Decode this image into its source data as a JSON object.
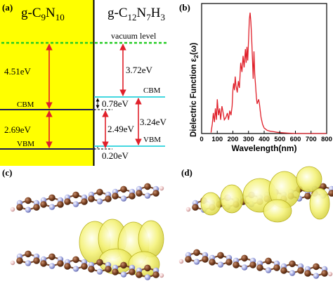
{
  "panel_a": {
    "label": "(a)",
    "left_material": {
      "main": "g-C",
      "sub1": "9",
      "mid": "N",
      "sub2": "10"
    },
    "right_material": {
      "main": "g-C",
      "sub1": "12",
      "mid": "N",
      "sub2": "7",
      "mid2": "H",
      "sub3": "3"
    },
    "vacuum_level": "vacuum level",
    "left_cbm_label": "CBM",
    "left_vbm_label": "VBM",
    "right_cbm_label": "CBM",
    "right_vbm_label": "VBM",
    "gap_left_vac_cbm": "4.51eV",
    "gap_left_band": "2.69eV",
    "gap_right_vac_cbm": "3.72eV",
    "offset_cbm": "0.78eV",
    "gap_right_band": "2.49eV",
    "gap_right_span": "3.24eV",
    "offset_vbm": "0.20eV"
  },
  "panel_b": {
    "label": "(b)",
    "ylabel_pre": "Dielectric Function ε",
    "ylabel_sub": "2",
    "ylabel_post": "(ω)",
    "xlabel": "Wavelength(nm)",
    "x_ticks": [
      "0",
      "100",
      "200",
      "300",
      "400",
      "500",
      "600",
      "700",
      "800"
    ]
  },
  "panel_c": {
    "label": "(c)"
  },
  "panel_d": {
    "label": "(d)"
  },
  "colors": {
    "yellow": "#ffff00",
    "red": "#e0202a",
    "green": "#22cc22",
    "cyan": "#44d8e0",
    "navy": "#1a1a55"
  },
  "chart_data": {
    "type": "line",
    "xlabel": "Wavelength(nm)",
    "ylabel": "Dielectric Function ε2(ω)",
    "xlim": [
      0,
      800
    ],
    "grid": false,
    "series": [
      {
        "x": [
          60,
          68,
          75,
          82,
          88,
          95,
          100,
          108,
          115,
          122,
          130,
          138,
          145,
          155,
          165,
          172,
          180,
          188,
          195,
          200,
          205,
          210,
          215,
          220,
          228,
          235,
          242,
          250,
          258,
          265,
          272,
          280,
          285,
          290,
          295,
          300,
          305,
          310,
          315,
          320,
          325,
          330,
          335,
          340,
          345,
          350,
          355,
          360,
          365,
          370,
          375,
          380,
          390,
          400,
          420,
          440,
          460,
          480,
          500,
          550,
          600,
          700,
          800
        ],
        "y": [
          0.02,
          0.2,
          0.45,
          0.25,
          0.55,
          0.3,
          0.75,
          0.4,
          0.55,
          0.3,
          0.6,
          0.45,
          0.3,
          0.35,
          0.45,
          0.3,
          0.5,
          0.4,
          0.6,
          0.95,
          1.1,
          0.95,
          1.25,
          1.05,
          0.9,
          1.15,
          1.0,
          1.55,
          1.35,
          1.7,
          1.45,
          1.85,
          1.55,
          1.9,
          1.6,
          2.05,
          2.5,
          2.65,
          2.45,
          2.1,
          1.65,
          1.2,
          1.8,
          1.3,
          1.05,
          0.8,
          0.65,
          0.7,
          0.75,
          0.65,
          0.5,
          0.35,
          0.2,
          0.12,
          0.07,
          0.05,
          0.04,
          0.03,
          0.02,
          0.01,
          0.0,
          0.0,
          0.0
        ]
      }
    ]
  }
}
